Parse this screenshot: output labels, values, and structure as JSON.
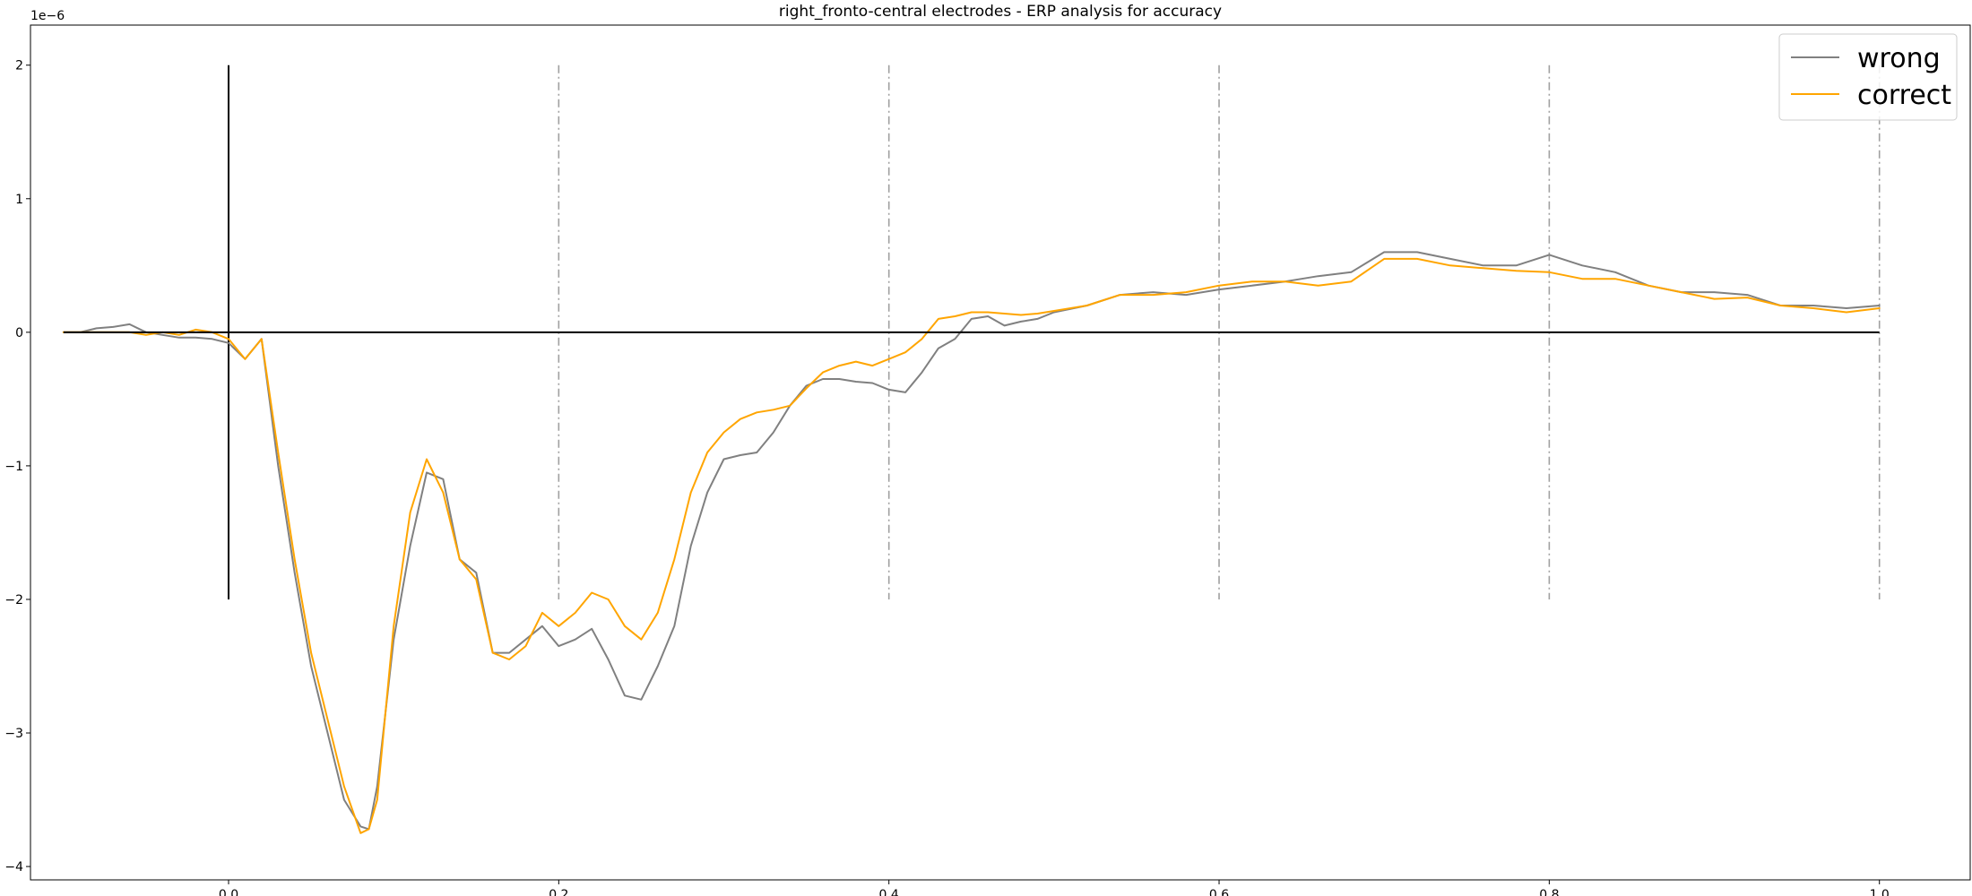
{
  "chart_data": {
    "type": "line",
    "title": "right_fronto-central electrodes - ERP analysis for accuracy",
    "xlabel": "",
    "ylabel": "",
    "y_offset_label": "1e−6",
    "xlim": [
      -0.12,
      1.055
    ],
    "ylim": [
      -4.1,
      2.3
    ],
    "x_ticks": [
      0.0,
      0.2,
      0.4,
      0.6,
      0.8,
      1.0
    ],
    "x_tick_labels": [
      "0.0",
      "0.2",
      "0.4",
      "0.6",
      "0.8",
      "1.0"
    ],
    "y_ticks": [
      2,
      1,
      0,
      -1,
      -2,
      -3,
      -4
    ],
    "y_tick_labels": [
      "2",
      "1",
      "0",
      "−1",
      "−2",
      "−3",
      "−4"
    ],
    "grid": false,
    "legend_position": "top-right",
    "reference_lines": {
      "onset_x": 0.0,
      "onset_y_range": [
        -2,
        2
      ],
      "baseline_y": 0,
      "baseline_x_range": [
        -0.1,
        1.0
      ],
      "marker_x": [
        0.2,
        0.4,
        0.6,
        0.8,
        1.0
      ],
      "marker_y_range": [
        -2,
        2
      ]
    },
    "series": [
      {
        "name": "wrong",
        "color": "#808080",
        "x": [
          -0.1,
          -0.09,
          -0.08,
          -0.07,
          -0.06,
          -0.05,
          -0.04,
          -0.03,
          -0.02,
          -0.01,
          0.0,
          0.01,
          0.02,
          0.03,
          0.04,
          0.05,
          0.06,
          0.07,
          0.08,
          0.085,
          0.09,
          0.1,
          0.11,
          0.12,
          0.13,
          0.14,
          0.15,
          0.16,
          0.17,
          0.18,
          0.19,
          0.2,
          0.21,
          0.22,
          0.23,
          0.24,
          0.25,
          0.26,
          0.27,
          0.28,
          0.29,
          0.3,
          0.31,
          0.32,
          0.33,
          0.34,
          0.35,
          0.36,
          0.37,
          0.38,
          0.39,
          0.4,
          0.41,
          0.42,
          0.43,
          0.44,
          0.45,
          0.46,
          0.47,
          0.48,
          0.49,
          0.5,
          0.52,
          0.54,
          0.56,
          0.58,
          0.6,
          0.62,
          0.64,
          0.66,
          0.68,
          0.7,
          0.72,
          0.74,
          0.76,
          0.78,
          0.8,
          0.82,
          0.84,
          0.86,
          0.88,
          0.9,
          0.92,
          0.94,
          0.96,
          0.98,
          1.0
        ],
        "values": [
          0.0,
          0.0,
          0.03,
          0.04,
          0.06,
          0.0,
          -0.02,
          -0.04,
          -0.04,
          -0.05,
          -0.08,
          -0.2,
          -0.05,
          -1.0,
          -1.8,
          -2.5,
          -3.0,
          -3.5,
          -3.7,
          -3.72,
          -3.4,
          -2.3,
          -1.6,
          -1.05,
          -1.1,
          -1.7,
          -1.8,
          -2.4,
          -2.4,
          -2.3,
          -2.2,
          -2.35,
          -2.3,
          -2.22,
          -2.45,
          -2.72,
          -2.75,
          -2.5,
          -2.2,
          -1.6,
          -1.2,
          -0.95,
          -0.92,
          -0.9,
          -0.75,
          -0.55,
          -0.4,
          -0.35,
          -0.35,
          -0.37,
          -0.38,
          -0.43,
          -0.45,
          -0.3,
          -0.12,
          -0.05,
          0.1,
          0.12,
          0.05,
          0.08,
          0.1,
          0.15,
          0.2,
          0.28,
          0.3,
          0.28,
          0.32,
          0.35,
          0.38,
          0.42,
          0.45,
          0.6,
          0.6,
          0.55,
          0.5,
          0.5,
          0.58,
          0.5,
          0.45,
          0.35,
          0.3,
          0.3,
          0.28,
          0.2,
          0.2,
          0.18,
          0.2
        ]
      },
      {
        "name": "correct",
        "color": "#FFA500",
        "x": [
          -0.1,
          -0.09,
          -0.08,
          -0.07,
          -0.06,
          -0.05,
          -0.04,
          -0.03,
          -0.02,
          -0.01,
          0.0,
          0.01,
          0.02,
          0.03,
          0.04,
          0.05,
          0.06,
          0.07,
          0.08,
          0.085,
          0.09,
          0.1,
          0.11,
          0.12,
          0.13,
          0.14,
          0.15,
          0.16,
          0.17,
          0.18,
          0.19,
          0.2,
          0.21,
          0.22,
          0.23,
          0.24,
          0.25,
          0.26,
          0.27,
          0.28,
          0.29,
          0.3,
          0.31,
          0.32,
          0.33,
          0.34,
          0.35,
          0.36,
          0.37,
          0.38,
          0.39,
          0.4,
          0.41,
          0.42,
          0.43,
          0.44,
          0.45,
          0.46,
          0.47,
          0.48,
          0.49,
          0.5,
          0.52,
          0.54,
          0.56,
          0.58,
          0.6,
          0.62,
          0.64,
          0.66,
          0.68,
          0.7,
          0.72,
          0.74,
          0.76,
          0.78,
          0.8,
          0.82,
          0.84,
          0.86,
          0.88,
          0.9,
          0.92,
          0.94,
          0.96,
          0.98,
          1.0
        ],
        "values": [
          0.0,
          0.0,
          0.0,
          0.0,
          0.0,
          -0.02,
          0.0,
          -0.02,
          0.02,
          0.0,
          -0.05,
          -0.2,
          -0.05,
          -0.9,
          -1.7,
          -2.4,
          -2.9,
          -3.4,
          -3.75,
          -3.72,
          -3.5,
          -2.2,
          -1.35,
          -0.95,
          -1.2,
          -1.7,
          -1.85,
          -2.4,
          -2.45,
          -2.35,
          -2.1,
          -2.2,
          -2.1,
          -1.95,
          -2.0,
          -2.2,
          -2.3,
          -2.1,
          -1.7,
          -1.2,
          -0.9,
          -0.75,
          -0.65,
          -0.6,
          -0.58,
          -0.55,
          -0.42,
          -0.3,
          -0.25,
          -0.22,
          -0.25,
          -0.2,
          -0.15,
          -0.05,
          0.1,
          0.12,
          0.15,
          0.15,
          0.14,
          0.13,
          0.14,
          0.16,
          0.2,
          0.28,
          0.28,
          0.3,
          0.35,
          0.38,
          0.38,
          0.35,
          0.38,
          0.55,
          0.55,
          0.5,
          0.48,
          0.46,
          0.45,
          0.4,
          0.4,
          0.35,
          0.3,
          0.25,
          0.26,
          0.2,
          0.18,
          0.15,
          0.18
        ]
      }
    ]
  }
}
